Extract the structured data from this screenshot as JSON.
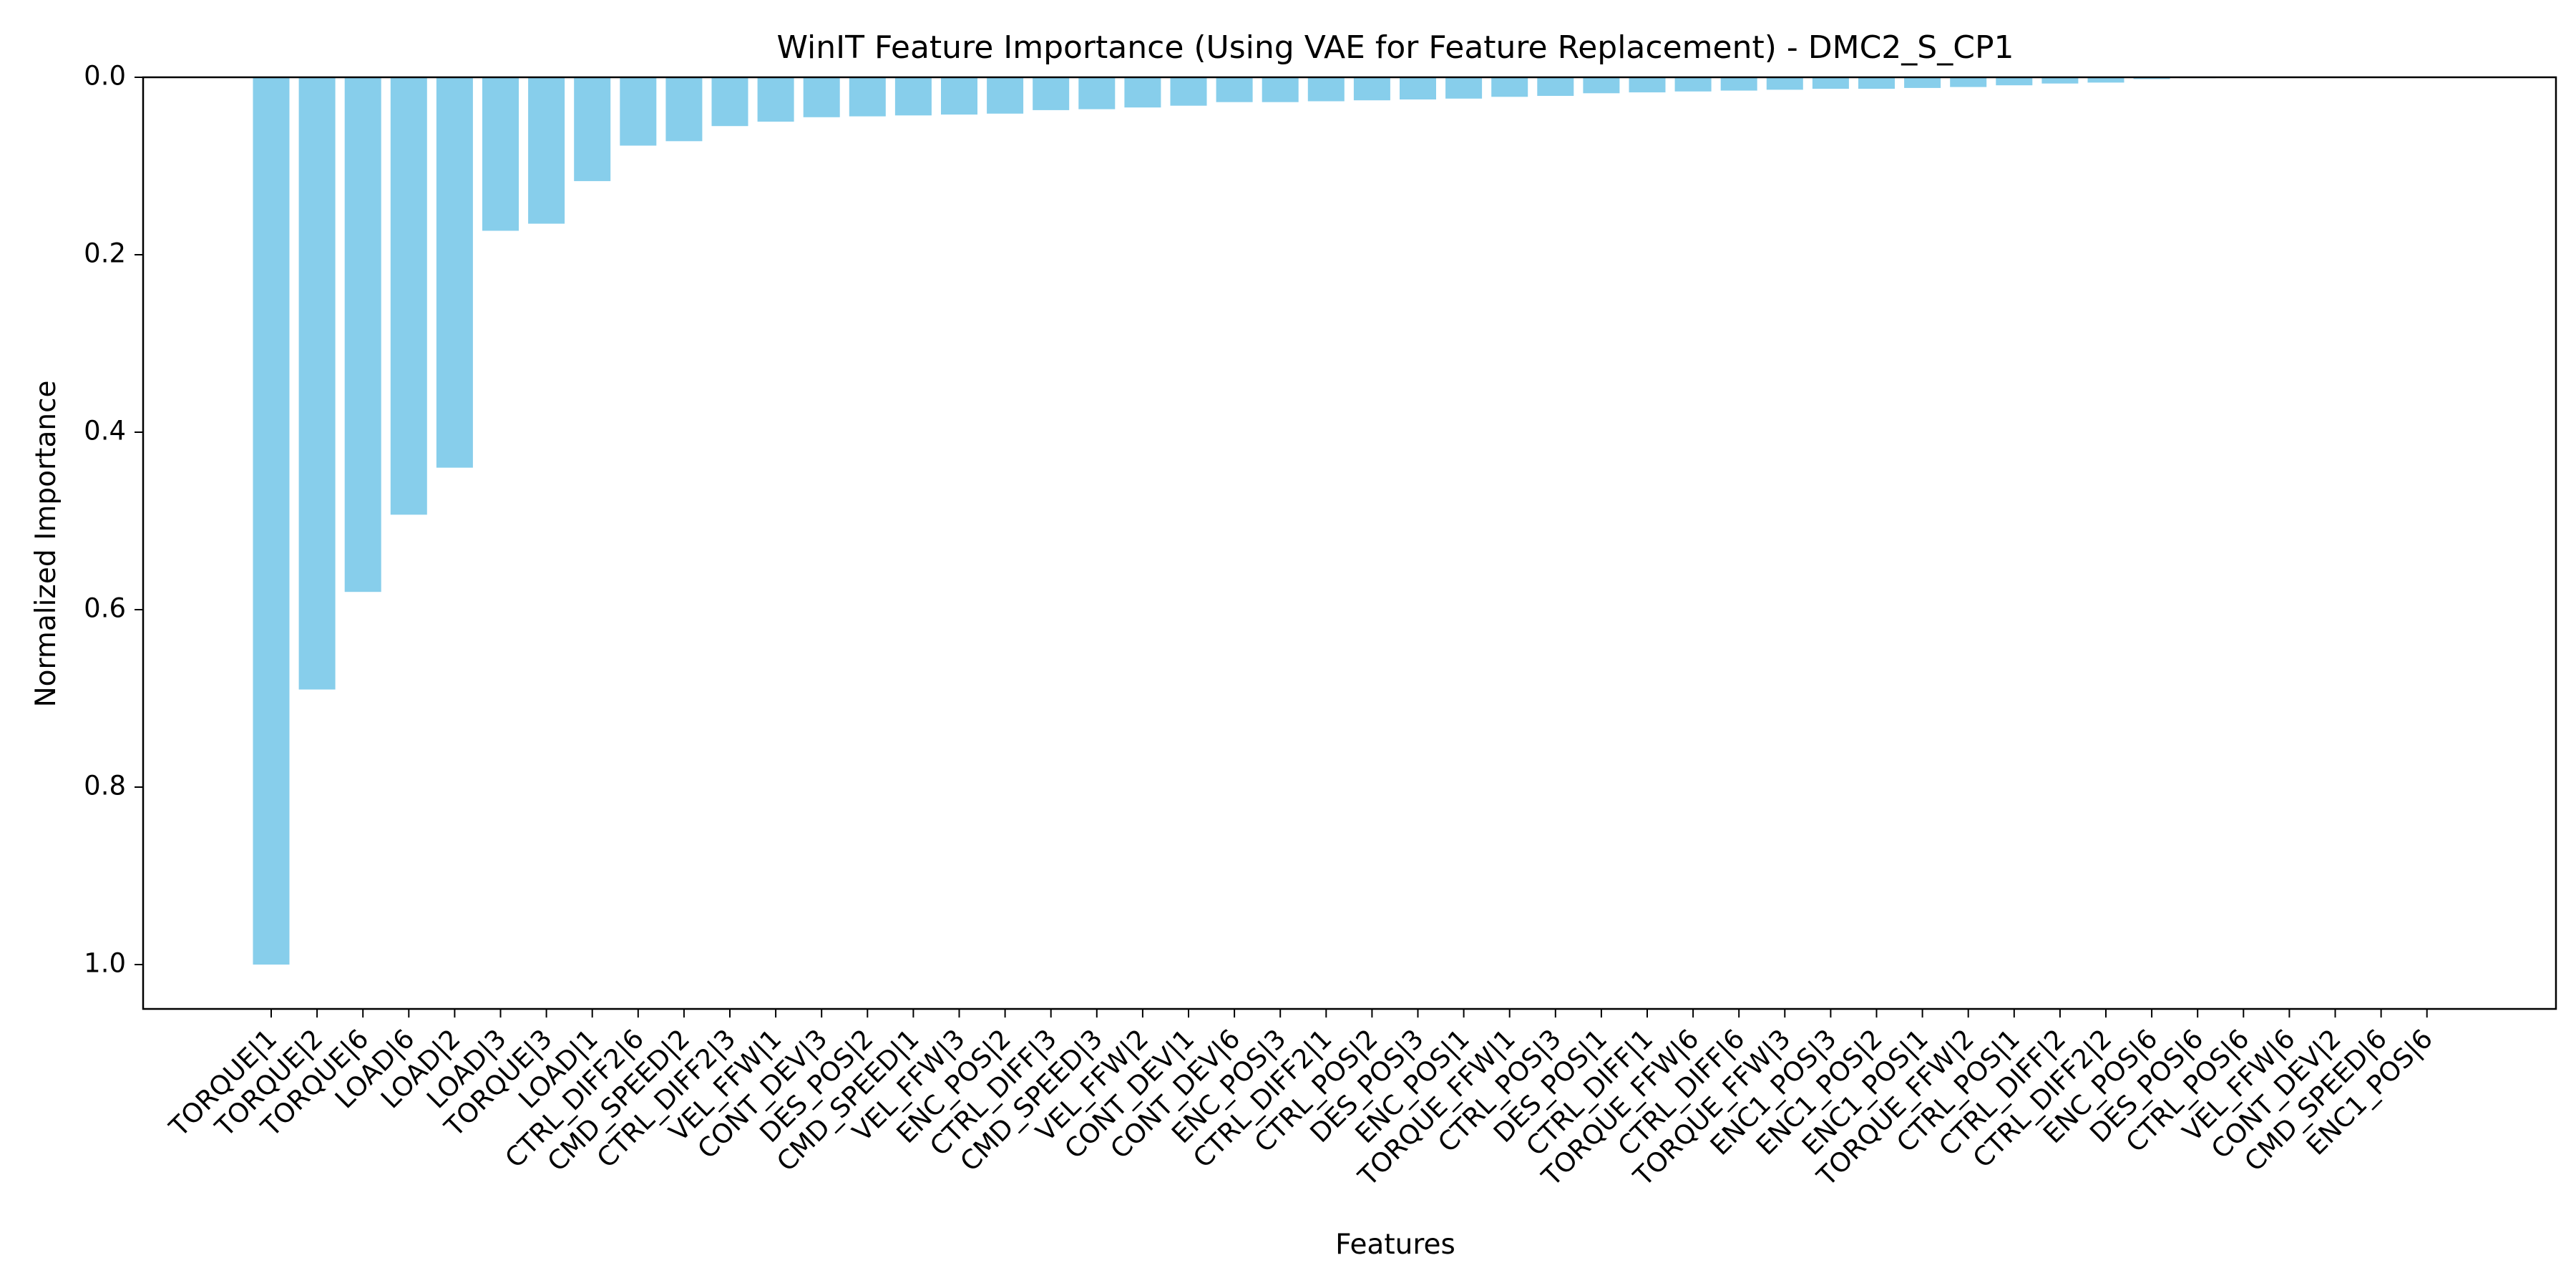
{
  "chart_data": {
    "type": "bar",
    "title": "WinIT Feature Importance (Using VAE for Feature Replacement) - DMC2_S_CP1",
    "xlabel": "Features",
    "ylabel": "Normalized Importance",
    "ylim": [
      0.0,
      1.05
    ],
    "y_inverted": true,
    "yticks": [
      "0.0",
      "0.2",
      "0.4",
      "0.6",
      "0.8",
      "1.0"
    ],
    "ytick_values": [
      0.0,
      0.2,
      0.4,
      0.6,
      0.8,
      1.0
    ],
    "grid": false,
    "bar_color": "#87ceeb",
    "categories": [
      "TORQUE|1",
      "TORQUE|2",
      "TORQUE|6",
      "LOAD|6",
      "LOAD|2",
      "LOAD|3",
      "TORQUE|3",
      "LOAD|1",
      "CTRL_DIFF2|6",
      "CMD_SPEED|2",
      "CTRL_DIFF2|3",
      "VEL_FFW|1",
      "CONT_DEV|3",
      "DES_POS|2",
      "CMD_SPEED|1",
      "VEL_FFW|3",
      "ENC_POS|2",
      "CTRL_DIFF|3",
      "CMD_SPEED|3",
      "VEL_FFW|2",
      "CONT_DEV|1",
      "CONT_DEV|6",
      "ENC_POS|3",
      "CTRL_DIFF2|1",
      "CTRL_POS|2",
      "DES_POS|3",
      "ENC_POS|1",
      "TORQUE_FFW|1",
      "CTRL_POS|3",
      "DES_POS|1",
      "CTRL_DIFF|1",
      "TORQUE_FFW|6",
      "CTRL_DIFF|6",
      "TORQUE_FFW|3",
      "ENC1_POS|3",
      "ENC1_POS|2",
      "ENC1_POS|1",
      "TORQUE_FFW|2",
      "CTRL_POS|1",
      "CTRL_DIFF|2",
      "CTRL_DIFF2|2",
      "ENC_POS|6",
      "DES_POS|6",
      "CTRL_POS|6",
      "VEL_FFW|6",
      "CONT_DEV|2",
      "CMD_SPEED|6",
      "ENC1_POS|6"
    ],
    "values": [
      1.0,
      0.69,
      0.58,
      0.493,
      0.44,
      0.173,
      0.165,
      0.117,
      0.077,
      0.072,
      0.055,
      0.05,
      0.045,
      0.044,
      0.043,
      0.042,
      0.041,
      0.037,
      0.036,
      0.034,
      0.032,
      0.028,
      0.028,
      0.027,
      0.026,
      0.025,
      0.024,
      0.022,
      0.021,
      0.018,
      0.017,
      0.016,
      0.015,
      0.014,
      0.013,
      0.013,
      0.012,
      0.011,
      0.009,
      0.007,
      0.006,
      0.002,
      0.001,
      0.0,
      0.0,
      0.0,
      0.0,
      0.0
    ]
  }
}
